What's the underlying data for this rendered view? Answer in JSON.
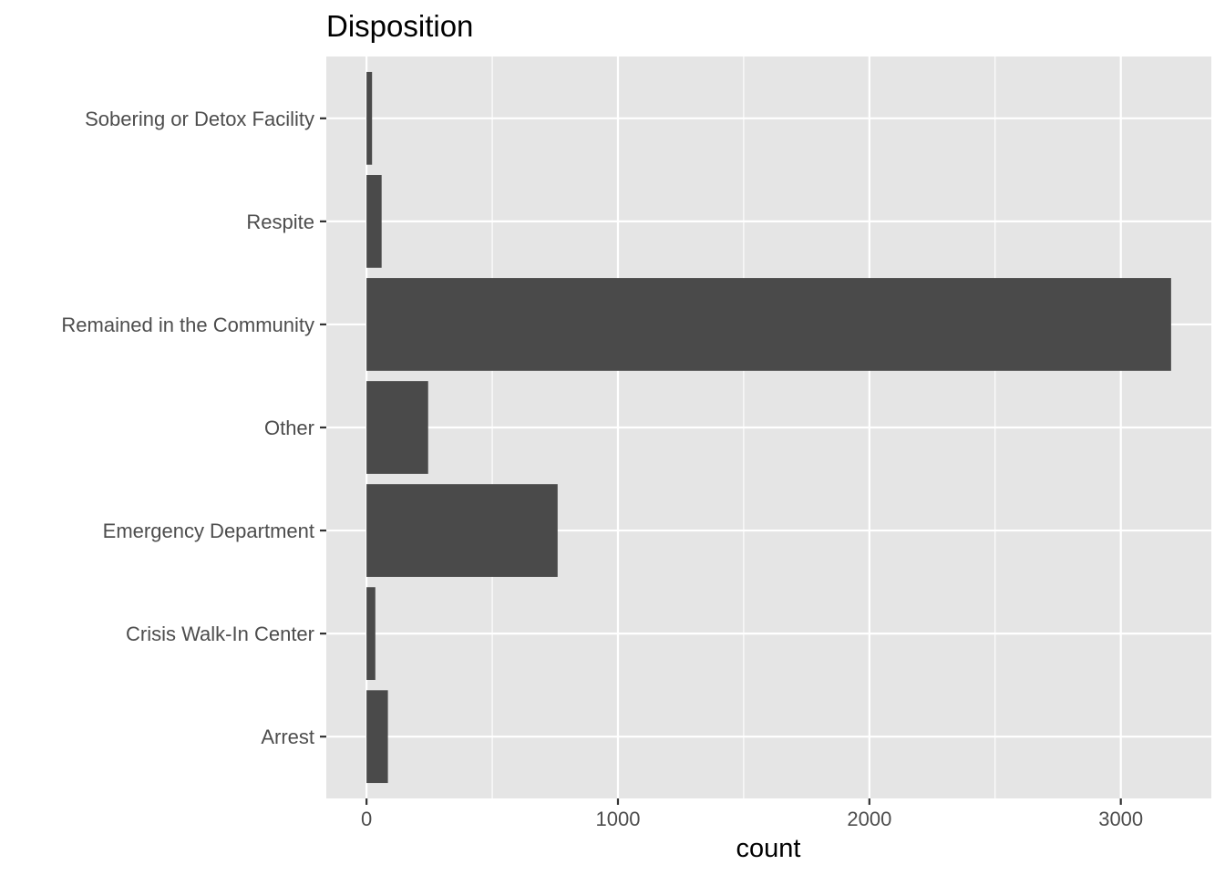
{
  "chart_data": {
    "type": "bar",
    "orientation": "horizontal",
    "title": "Disposition",
    "xlabel": "count",
    "ylabel": "",
    "categories": [
      "Arrest",
      "Crisis Walk-In Center",
      "Emergency Department",
      "Other",
      "Remained in the Community",
      "Respite",
      "Sobering or Detox Facility"
    ],
    "values": [
      85,
      35,
      760,
      245,
      3200,
      60,
      22
    ],
    "xlim": [
      -160,
      3360
    ],
    "x_ticks": [
      0,
      1000,
      2000,
      3000
    ],
    "x_minor_ticks": [
      500,
      1500,
      2500
    ],
    "x_tick_labels": [
      "0",
      "1000",
      "2000",
      "3000"
    ],
    "grid": true,
    "legend": "none",
    "colors": {
      "panel_background": "#e5e5e5",
      "grid_line": "#ffffff",
      "bar_fill": "#4a4a4a",
      "tick_label": "#4d4d4d",
      "tick_mark": "#333333",
      "text": "#000000"
    }
  }
}
